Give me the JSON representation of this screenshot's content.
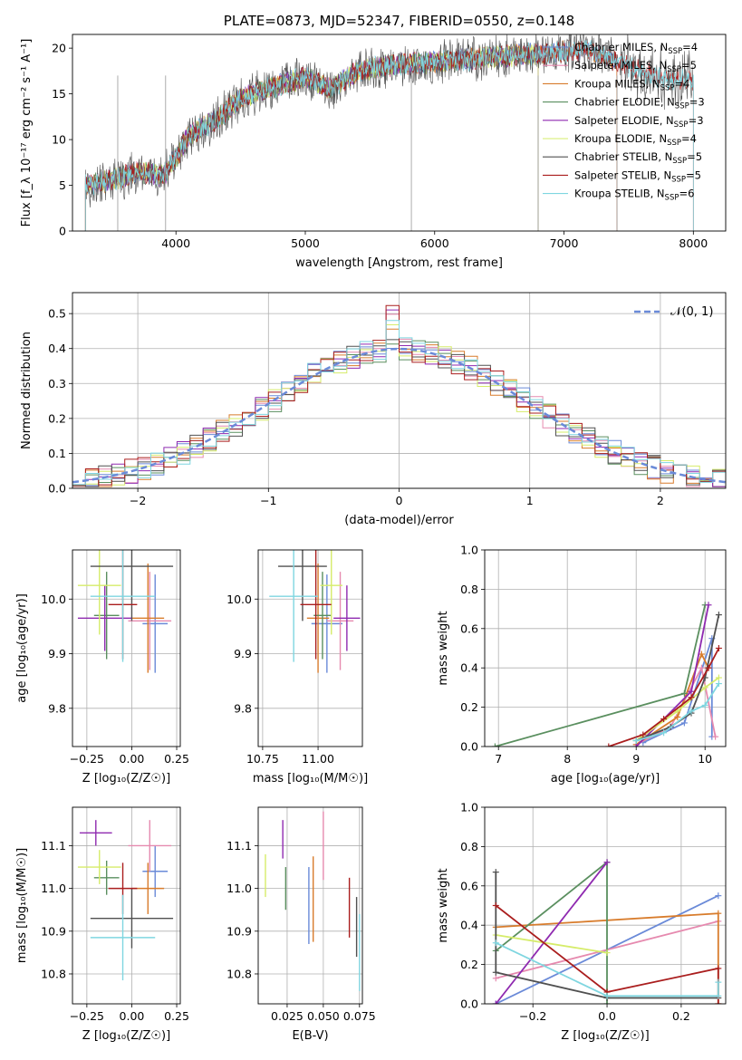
{
  "colors": {
    "Chabrier MILES": "#6a8ad8",
    "Salpeter MILES": "#e68aaf",
    "Kroupa MILES": "#d87c2c",
    "Chabrier ELODIE": "#5a8f5f",
    "Salpeter ELODIE": "#8f2ab0",
    "Kroupa ELODIE": "#d6ec6a",
    "Chabrier STELIB": "#505050",
    "Salpeter STELIB": "#aa1e1e",
    "Kroupa STELIB": "#7fd6e0",
    "gaussian": "#6a8ad8"
  },
  "chart_data": [
    {
      "type": "line",
      "title": "PLATE=0873, MJD=52347, FIBERID=0550, z=0.148",
      "xlabel": "wavelength [Angstrom, rest frame]",
      "ylabel": "Flux [f_λ 10⁻¹⁷ erg cm⁻² s⁻¹ A⁻¹]",
      "xlim": [
        3200,
        8250
      ],
      "ylim": [
        0,
        21.5
      ],
      "xticks": [
        "4000",
        "5000",
        "6000",
        "7000",
        "8000"
      ],
      "yticks": [
        "0",
        "5",
        "10",
        "15",
        "20"
      ],
      "legend_placement": "top-right",
      "series_names": [
        "Chabrier MILES",
        "Salpeter MILES",
        "Kroupa MILES",
        "Chabrier ELODIE",
        "Salpeter ELODIE",
        "Kroupa ELODIE",
        "Chabrier STELIB",
        "Salpeter STELIB",
        "Kroupa STELIB"
      ],
      "legend": [
        {
          "name": "Chabrier MILES",
          "label": "Chabrier MILES, N",
          "sub": "SSP",
          "nssp": "=4"
        },
        {
          "name": "Salpeter MILES",
          "label": "Salpeter MILES, N",
          "sub": "SSP",
          "nssp": "=5"
        },
        {
          "name": "Kroupa MILES",
          "label": "Kroupa MILES, N",
          "sub": "SSP",
          "nssp": "=4"
        },
        {
          "name": "Chabrier ELODIE",
          "label": "Chabrier ELODIE, N",
          "sub": "SSP",
          "nssp": "=3"
        },
        {
          "name": "Salpeter ELODIE",
          "label": "Salpeter ELODIE, N",
          "sub": "SSP",
          "nssp": "=3"
        },
        {
          "name": "Kroupa ELODIE",
          "label": "Kroupa ELODIE, N",
          "sub": "SSP",
          "nssp": "=4"
        },
        {
          "name": "Chabrier STELIB",
          "label": "Chabrier STELIB, N",
          "sub": "SSP",
          "nssp": "=5"
        },
        {
          "name": "Salpeter STELIB",
          "label": "Salpeter STELIB, N",
          "sub": "SSP",
          "nssp": "=5"
        },
        {
          "name": "Kroupa STELIB",
          "label": "Kroupa STELIB, N",
          "sub": "SSP",
          "nssp": "=6"
        }
      ],
      "continuum": [
        [
          3300,
          5.0
        ],
        [
          3500,
          5.5
        ],
        [
          3700,
          6.5
        ],
        [
          3900,
          6.0
        ],
        [
          4000,
          8.0
        ],
        [
          4100,
          10.5
        ],
        [
          4300,
          12.0
        ],
        [
          4500,
          14.5
        ],
        [
          4800,
          16.0
        ],
        [
          5000,
          16.8
        ],
        [
          5200,
          15.5
        ],
        [
          5400,
          17.5
        ],
        [
          5700,
          18.2
        ],
        [
          6000,
          18.5
        ],
        [
          6300,
          18.8
        ],
        [
          6600,
          19.2
        ],
        [
          6900,
          19.5
        ],
        [
          7200,
          19.8
        ],
        [
          7500,
          18.0
        ],
        [
          7800,
          16.5
        ]
      ],
      "series_ranges": {
        "Chabrier MILES": [
          3300,
          7410
        ],
        "Salpeter MILES": [
          3300,
          7410
        ],
        "Kroupa MILES": [
          3300,
          7410
        ],
        "Chabrier ELODIE": [
          3300,
          6800
        ],
        "Salpeter ELODIE": [
          3300,
          6800
        ],
        "Kroupa ELODIE": [
          3300,
          6800
        ],
        "Chabrier STELIB": [
          3300,
          8000
        ],
        "Salpeter STELIB": [
          3300,
          8000
        ],
        "Kroupa STELIB": [
          3300,
          8000
        ]
      },
      "data_trace": "Chabrier STELIB",
      "drops": [
        3550,
        3920,
        5820,
        6800,
        7410
      ]
    },
    {
      "type": "line",
      "xlabel": "(data-model)/error",
      "ylabel": "Normed distribution",
      "xlim": [
        -2.5,
        2.5
      ],
      "ylim": [
        0,
        0.56
      ],
      "xticks": [
        "−2",
        "−1",
        "0",
        "1",
        "2"
      ],
      "yticks": [
        "0.0",
        "0.1",
        "0.2",
        "0.3",
        "0.4",
        "0.5"
      ],
      "grid": true,
      "legend_placement": "top-right",
      "legend": [
        "𝒩(0, 1)"
      ],
      "series_names": [
        "Chabrier MILES",
        "Salpeter MILES",
        "Kroupa MILES",
        "Chabrier ELODIE",
        "Salpeter ELODIE",
        "Kroupa ELODIE",
        "Chabrier STELIB",
        "Salpeter STELIB",
        "Kroupa STELIB"
      ],
      "bin_width": 0.1,
      "x": [
        -2.45,
        -2.35,
        -2.25,
        -2.15,
        -2.05,
        -1.95,
        -1.85,
        -1.75,
        -1.65,
        -1.55,
        -1.45,
        -1.35,
        -1.25,
        -1.15,
        -1.05,
        -0.95,
        -0.85,
        -0.75,
        -0.65,
        -0.55,
        -0.45,
        -0.35,
        -0.25,
        -0.15,
        -0.05,
        0.05,
        0.15,
        0.25,
        0.35,
        0.45,
        0.55,
        0.65,
        0.75,
        0.85,
        0.95,
        1.05,
        1.15,
        1.25,
        1.35,
        1.45,
        1.55,
        1.65,
        1.75,
        1.85,
        1.95,
        2.05,
        2.15,
        2.25,
        2.35,
        2.45
      ],
      "gaussian": [
        0.02,
        0.025,
        0.032,
        0.04,
        0.049,
        0.06,
        0.072,
        0.086,
        0.102,
        0.12,
        0.139,
        0.16,
        0.183,
        0.206,
        0.23,
        0.254,
        0.278,
        0.301,
        0.323,
        0.343,
        0.361,
        0.375,
        0.387,
        0.395,
        0.399,
        0.399,
        0.395,
        0.387,
        0.375,
        0.361,
        0.343,
        0.323,
        0.301,
        0.278,
        0.254,
        0.23,
        0.206,
        0.183,
        0.16,
        0.139,
        0.12,
        0.102,
        0.086,
        0.072,
        0.06,
        0.049,
        0.04,
        0.032,
        0.025,
        0.02
      ]
    },
    {
      "type": "scatter",
      "xlabel": "Z [log₁₀(Z/Z☉)]",
      "ylabel": "age  [log₁₀(age/yr)]",
      "xlim": [
        -0.33,
        0.27
      ],
      "ylim": [
        9.73,
        10.09
      ],
      "xticks": [
        "−0.25",
        "0.00",
        "0.25"
      ],
      "yticks": [
        "9.8",
        "9.9",
        "10.0"
      ],
      "grid": true,
      "points": [
        {
          "name": "Chabrier MILES",
          "x": 0.13,
          "y": 9.955,
          "xerr": 0.07,
          "yerr": 0.09
        },
        {
          "name": "Salpeter MILES",
          "x": 0.1,
          "y": 9.96,
          "xerr": 0.12,
          "yerr": 0.09
        },
        {
          "name": "Kroupa MILES",
          "x": 0.09,
          "y": 9.965,
          "xerr": 0.09,
          "yerr": 0.1
        },
        {
          "name": "Chabrier ELODIE",
          "x": -0.14,
          "y": 9.97,
          "xerr": 0.07,
          "yerr": 0.08
        },
        {
          "name": "Salpeter ELODIE",
          "x": -0.15,
          "y": 9.965,
          "xerr": 0.15,
          "yerr": 0.06
        },
        {
          "name": "Kroupa ELODIE",
          "x": -0.18,
          "y": 10.025,
          "xerr": 0.12,
          "yerr": 0.09
        },
        {
          "name": "Chabrier STELIB",
          "x": 0.0,
          "y": 10.06,
          "xerr": 0.23,
          "yerr": 0.1
        },
        {
          "name": "Salpeter STELIB",
          "x": -0.05,
          "y": 9.99,
          "xerr": 0.08,
          "yerr": 0.1
        },
        {
          "name": "Kroupa STELIB",
          "x": -0.05,
          "y": 10.005,
          "xerr": 0.18,
          "yerr": 0.12
        }
      ]
    },
    {
      "type": "scatter",
      "xlabel": "mass [log₁₀(M/M☉)]",
      "ylabel": "",
      "xlim": [
        10.73,
        11.2
      ],
      "ylim": [
        9.73,
        10.09
      ],
      "xticks": [
        "10.75",
        "11.00"
      ],
      "yticks": [
        "9.8",
        "9.9",
        "10.0"
      ],
      "grid": true,
      "points": [
        {
          "name": "Chabrier MILES",
          "x": 11.04,
          "y": 9.955,
          "xerr": 0.07,
          "yerr": 0.09
        },
        {
          "name": "Salpeter MILES",
          "x": 11.1,
          "y": 9.96,
          "xerr": 0.06,
          "yerr": 0.09
        },
        {
          "name": "Kroupa MILES",
          "x": 11.0,
          "y": 9.965,
          "xerr": 0.05,
          "yerr": 0.1
        },
        {
          "name": "Chabrier ELODIE",
          "x": 11.02,
          "y": 9.97,
          "xerr": 0.04,
          "yerr": 0.08
        },
        {
          "name": "Salpeter ELODIE",
          "x": 11.13,
          "y": 9.965,
          "xerr": 0.06,
          "yerr": 0.06
        },
        {
          "name": "Kroupa ELODIE",
          "x": 11.06,
          "y": 10.025,
          "xerr": 0.05,
          "yerr": 0.09
        },
        {
          "name": "Chabrier STELIB",
          "x": 10.93,
          "y": 10.06,
          "xerr": 0.11,
          "yerr": 0.1
        },
        {
          "name": "Salpeter STELIB",
          "x": 10.99,
          "y": 9.99,
          "xerr": 0.07,
          "yerr": 0.1
        },
        {
          "name": "Kroupa STELIB",
          "x": 10.89,
          "y": 10.005,
          "xerr": 0.11,
          "yerr": 0.12
        }
      ]
    },
    {
      "type": "line",
      "xlabel": "age  [log₁₀(age/yr)]",
      "ylabel": "mass weight",
      "xlim": [
        6.8,
        10.3
      ],
      "ylim": [
        0,
        1
      ],
      "xticks": [
        "7",
        "8",
        "9",
        "10"
      ],
      "yticks": [
        "0.0",
        "0.2",
        "0.4",
        "0.6",
        "0.8",
        "1.0"
      ],
      "grid": true,
      "series": [
        {
          "name": "Chabrier MILES",
          "x": [
            9.1,
            9.7,
            10.1,
            10.1
          ],
          "y": [
            0.02,
            0.12,
            0.55,
            0.05
          ]
        },
        {
          "name": "Salpeter MILES",
          "x": [
            9.0,
            9.5,
            9.95,
            10.15
          ],
          "y": [
            0.01,
            0.1,
            0.4,
            0.05
          ]
        },
        {
          "name": "Kroupa MILES",
          "x": [
            9.0,
            9.6,
            9.95,
            10.05
          ],
          "y": [
            0.01,
            0.15,
            0.47,
            0.4
          ]
        },
        {
          "name": "Chabrier ELODIE",
          "x": [
            6.95,
            9.7,
            10.0
          ],
          "y": [
            0.0,
            0.27,
            0.72
          ]
        },
        {
          "name": "Salpeter ELODIE",
          "x": [
            9.0,
            9.8,
            10.05
          ],
          "y": [
            0.0,
            0.28,
            0.72
          ]
        },
        {
          "name": "Kroupa ELODIE",
          "x": [
            9.0,
            9.6,
            10.0,
            10.2
          ],
          "y": [
            0.03,
            0.18,
            0.3,
            0.35
          ]
        },
        {
          "name": "Chabrier STELIB",
          "x": [
            9.0,
            9.5,
            9.8,
            10.0,
            10.2
          ],
          "y": [
            0.03,
            0.1,
            0.17,
            0.35,
            0.67
          ]
        },
        {
          "name": "Salpeter STELIB",
          "x": [
            8.6,
            9.1,
            9.4,
            9.8,
            10.05,
            10.2
          ],
          "y": [
            0.0,
            0.06,
            0.14,
            0.25,
            0.4,
            0.5
          ]
        },
        {
          "name": "Kroupa STELIB",
          "x": [
            9.0,
            9.4,
            9.8,
            10.0,
            10.2
          ],
          "y": [
            0.03,
            0.07,
            0.18,
            0.21,
            0.32
          ]
        }
      ]
    },
    {
      "type": "scatter",
      "xlabel": "Z [log₁₀(Z/Z☉)]",
      "ylabel": "mass [log₁₀(M/M☉)]",
      "xlim": [
        -0.33,
        0.27
      ],
      "ylim": [
        10.73,
        11.19
      ],
      "xticks": [
        "−0.25",
        "0.00",
        "0.25"
      ],
      "yticks": [
        "10.8",
        "10.9",
        "11.0",
        "11.1"
      ],
      "grid": true,
      "points": [
        {
          "name": "Chabrier MILES",
          "x": 0.13,
          "y": 11.04,
          "xerr": 0.07,
          "yerr": 0.06
        },
        {
          "name": "Salpeter MILES",
          "x": 0.1,
          "y": 11.1,
          "xerr": 0.12,
          "yerr": 0.06
        },
        {
          "name": "Kroupa MILES",
          "x": 0.09,
          "y": 11.0,
          "xerr": 0.09,
          "yerr": 0.06
        },
        {
          "name": "Chabrier ELODIE",
          "x": -0.14,
          "y": 11.025,
          "xerr": 0.07,
          "yerr": 0.04
        },
        {
          "name": "Salpeter ELODIE",
          "x": -0.2,
          "y": 11.13,
          "xerr": 0.09,
          "yerr": 0.03
        },
        {
          "name": "Kroupa ELODIE",
          "x": -0.18,
          "y": 11.05,
          "xerr": 0.12,
          "yerr": 0.04
        },
        {
          "name": "Chabrier STELIB",
          "x": 0.0,
          "y": 10.93,
          "xerr": 0.23,
          "yerr": 0.07
        },
        {
          "name": "Salpeter STELIB",
          "x": -0.05,
          "y": 11.0,
          "xerr": 0.08,
          "yerr": 0.06
        },
        {
          "name": "Kroupa STELIB",
          "x": -0.05,
          "y": 10.885,
          "xerr": 0.18,
          "yerr": 0.1
        }
      ]
    },
    {
      "type": "scatter",
      "xlabel": "E(B-V)",
      "ylabel": "",
      "xlim": [
        0.005,
        0.077
      ],
      "ylim": [
        10.73,
        11.19
      ],
      "xticks": [
        "0.025",
        "0.050",
        "0.075"
      ],
      "yticks": [
        "10.8",
        "10.9",
        "11.0",
        "11.1"
      ],
      "grid": true,
      "points": [
        {
          "name": "Chabrier MILES",
          "x": 0.04,
          "y": 10.96,
          "yerr": 0.09
        },
        {
          "name": "Salpeter MILES",
          "x": 0.05,
          "y": 11.1,
          "yerr": 0.08
        },
        {
          "name": "Kroupa MILES",
          "x": 0.043,
          "y": 10.975,
          "yerr": 0.1
        },
        {
          "name": "Chabrier ELODIE",
          "x": 0.024,
          "y": 11.0,
          "yerr": 0.05
        },
        {
          "name": "Salpeter ELODIE",
          "x": 0.022,
          "y": 11.115,
          "yerr": 0.045
        },
        {
          "name": "Kroupa ELODIE",
          "x": 0.01,
          "y": 11.03,
          "yerr": 0.05
        },
        {
          "name": "Chabrier STELIB",
          "x": 0.073,
          "y": 10.91,
          "yerr": 0.07
        },
        {
          "name": "Salpeter STELIB",
          "x": 0.068,
          "y": 10.955,
          "yerr": 0.07
        },
        {
          "name": "Kroupa STELIB",
          "x": 0.075,
          "y": 10.85,
          "yerr": 0.09
        }
      ]
    },
    {
      "type": "line",
      "xlabel": "Z [log₁₀(Z/Z☉)]",
      "ylabel": "mass weight",
      "xlim": [
        -0.33,
        0.32
      ],
      "ylim": [
        0,
        1
      ],
      "xticks": [
        "−0.2",
        "0.0",
        "0.2"
      ],
      "yticks": [
        "0.0",
        "0.2",
        "0.4",
        "0.6",
        "0.8",
        "1.0"
      ],
      "grid": true,
      "series": [
        {
          "name": "Chabrier MILES",
          "x": [
            -0.3,
            0.3
          ],
          "y": [
            0.0,
            0.55
          ]
        },
        {
          "name": "Salpeter MILES",
          "x": [
            -0.3,
            0.3
          ],
          "y": [
            0.13,
            0.42
          ]
        },
        {
          "name": "Kroupa MILES",
          "x": [
            -0.3,
            0.3,
            0.3
          ],
          "y": [
            0.39,
            0.46,
            0.0
          ]
        },
        {
          "name": "Chabrier ELODIE",
          "x": [
            -0.3,
            0.0,
            0.0
          ],
          "y": [
            0.27,
            0.72,
            0.0
          ]
        },
        {
          "name": "Salpeter ELODIE",
          "x": [
            -0.3,
            0.0
          ],
          "y": [
            0.0,
            0.72
          ]
        },
        {
          "name": "Kroupa ELODIE",
          "x": [
            -0.3,
            0.0
          ],
          "y": [
            0.35,
            0.26
          ]
        },
        {
          "name": "Chabrier STELIB",
          "x": [
            -0.3,
            -0.3,
            0.0,
            0.3
          ],
          "y": [
            0.67,
            0.16,
            0.03,
            0.03
          ]
        },
        {
          "name": "Salpeter STELIB",
          "x": [
            -0.3,
            0.0,
            0.3,
            0.3
          ],
          "y": [
            0.5,
            0.06,
            0.18,
            0.0
          ]
        },
        {
          "name": "Kroupa STELIB",
          "x": [
            -0.3,
            0.0,
            0.3,
            0.3
          ],
          "y": [
            0.31,
            0.04,
            0.04,
            0.11
          ]
        }
      ]
    }
  ]
}
